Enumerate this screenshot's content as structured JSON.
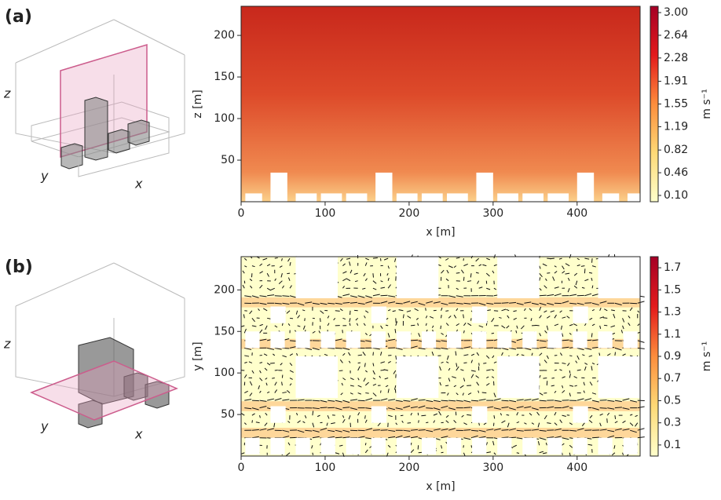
{
  "chart_data": [
    {
      "type": "heatmap",
      "panel_label": "(a)",
      "xlabel": "x [m]",
      "ylabel": "z [m]",
      "xlim": [
        0,
        475
      ],
      "ylim": [
        0,
        235
      ],
      "xticks": [
        0,
        100,
        200,
        300,
        400
      ],
      "yticks": [
        50,
        100,
        150,
        200
      ],
      "colorbar_label": "m s⁻¹",
      "clim": [
        0,
        3.1
      ],
      "cticks": [
        {
          "value": 3,
          "label": "3.00"
        },
        2.64,
        2.28,
        1.91,
        1.55,
        1.19,
        0.82,
        0.46,
        {
          "value": 0.1,
          "label": "0.10"
        }
      ],
      "colormap": [
        "#ffffcc",
        "#fed976",
        "#fd8d3c",
        "#e31a1c",
        "#a50026"
      ],
      "inset_labels": {
        "x": "x",
        "y": "y",
        "z": "z"
      }
    },
    {
      "type": "quiver",
      "panel_label": "(b)",
      "xlabel": "x [m]",
      "ylabel": "y [m]",
      "xlim": [
        0,
        475
      ],
      "ylim": [
        0,
        240
      ],
      "xticks": [
        0,
        100,
        200,
        300,
        400
      ],
      "yticks": [
        50,
        100,
        150,
        200
      ],
      "colorbar_label": "m s⁻¹",
      "clim": [
        0,
        1.8
      ],
      "cticks": [
        1.7,
        1.5,
        1.3,
        1.1,
        0.9,
        0.7,
        0.5,
        0.3,
        0.1
      ],
      "colormap": [
        "#ffffcc",
        "#fed976",
        "#fd8d3c",
        "#e31a1c",
        "#a50026"
      ],
      "inset_labels": {
        "x": "x",
        "y": "y",
        "z": "z"
      }
    }
  ]
}
